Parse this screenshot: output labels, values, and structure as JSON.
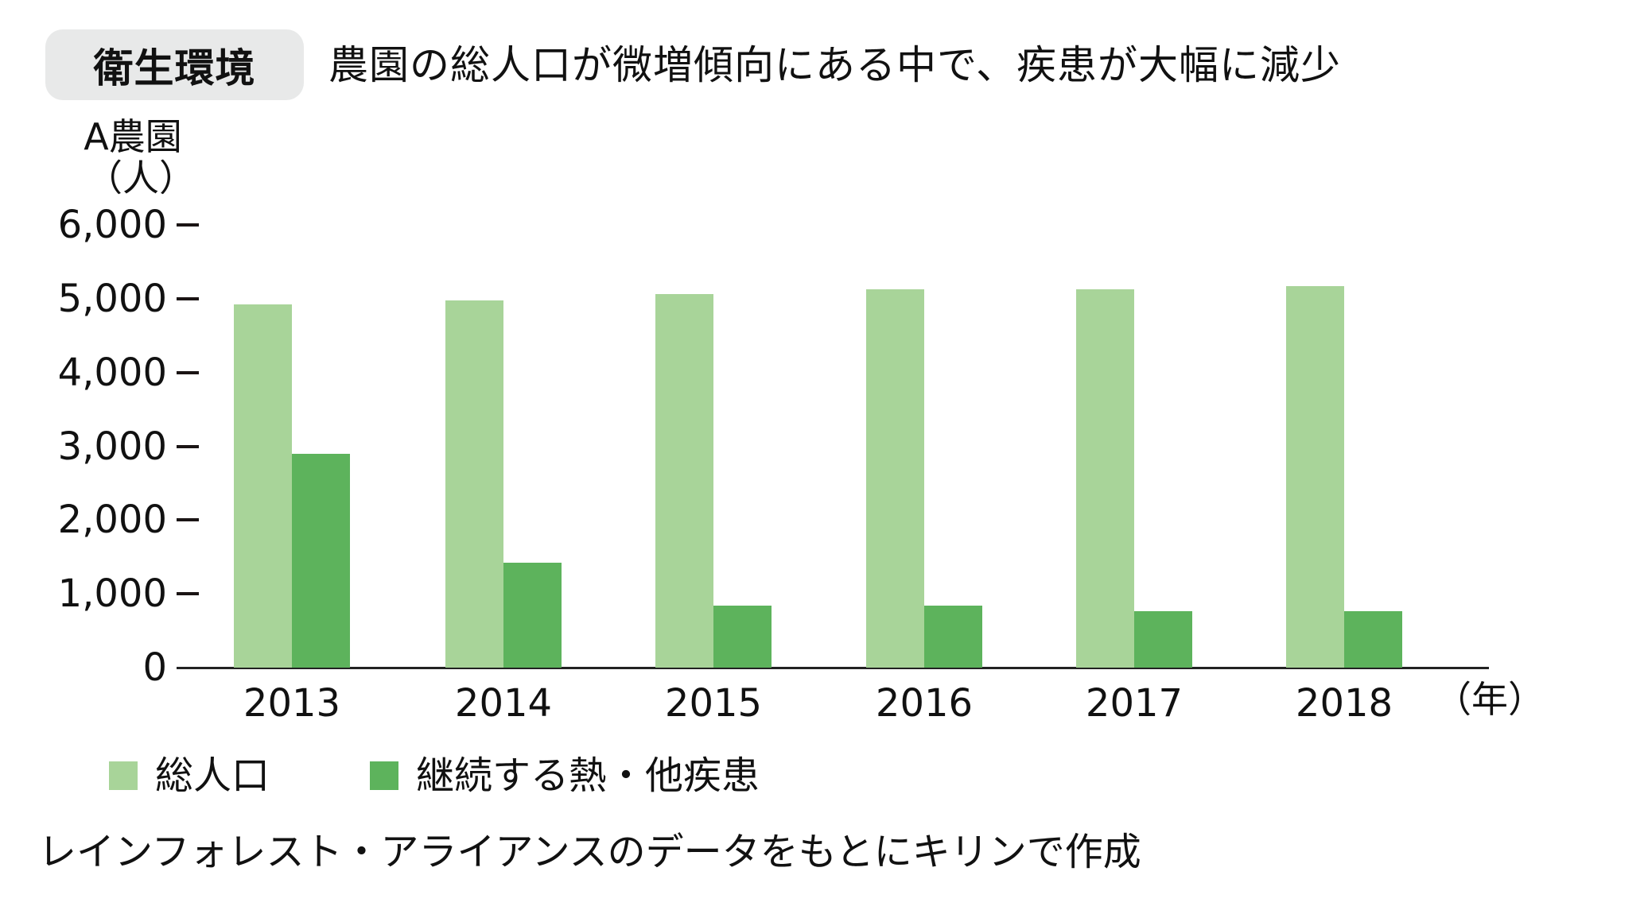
{
  "header": {
    "badge": "衛生環境",
    "subtitle": "農園の総人口が微増傾向にある中で、疾患が大幅に減少"
  },
  "axis": {
    "ylabel_line1": "A農園",
    "ylabel_line2": "（人）",
    "xunit": "（年）",
    "yticks": [
      "6,000",
      "5,000",
      "4,000",
      "3,000",
      "2,000",
      "1,000",
      "0"
    ]
  },
  "legend": [
    {
      "label": "総人口",
      "color": "#a8d499"
    },
    {
      "label": "継続する熱・他疾患",
      "color": "#5db35c"
    }
  ],
  "source": "レインフォレスト・アライアンスのデータをもとにキリンで作成",
  "colors": {
    "total_population": "#a8d499",
    "fever_other_disease": "#5db35c",
    "badge_bg": "#e8e9e9",
    "axis": "#222222"
  },
  "chart_data": {
    "type": "bar",
    "title": "農園の総人口が微増傾向にある中で、疾患が大幅に減少",
    "category_label": "衛生環境",
    "xlabel": "（年）",
    "ylabel": "A農園（人）",
    "categories": [
      "2013",
      "2014",
      "2015",
      "2016",
      "2017",
      "2018"
    ],
    "series": [
      {
        "name": "総人口",
        "color": "#a8d499",
        "values": [
          4920,
          4980,
          5060,
          5130,
          5130,
          5170
        ]
      },
      {
        "name": "継続する熱・他疾患",
        "color": "#5db35c",
        "values": [
          2900,
          1420,
          840,
          840,
          770,
          770
        ]
      }
    ],
    "ylim": [
      0,
      6000
    ],
    "yticks": [
      0,
      1000,
      2000,
      3000,
      4000,
      5000,
      6000
    ],
    "grid": false,
    "legend_position": "bottom-left",
    "source": "レインフォレスト・アライアンスのデータをもとにキリンで作成"
  }
}
